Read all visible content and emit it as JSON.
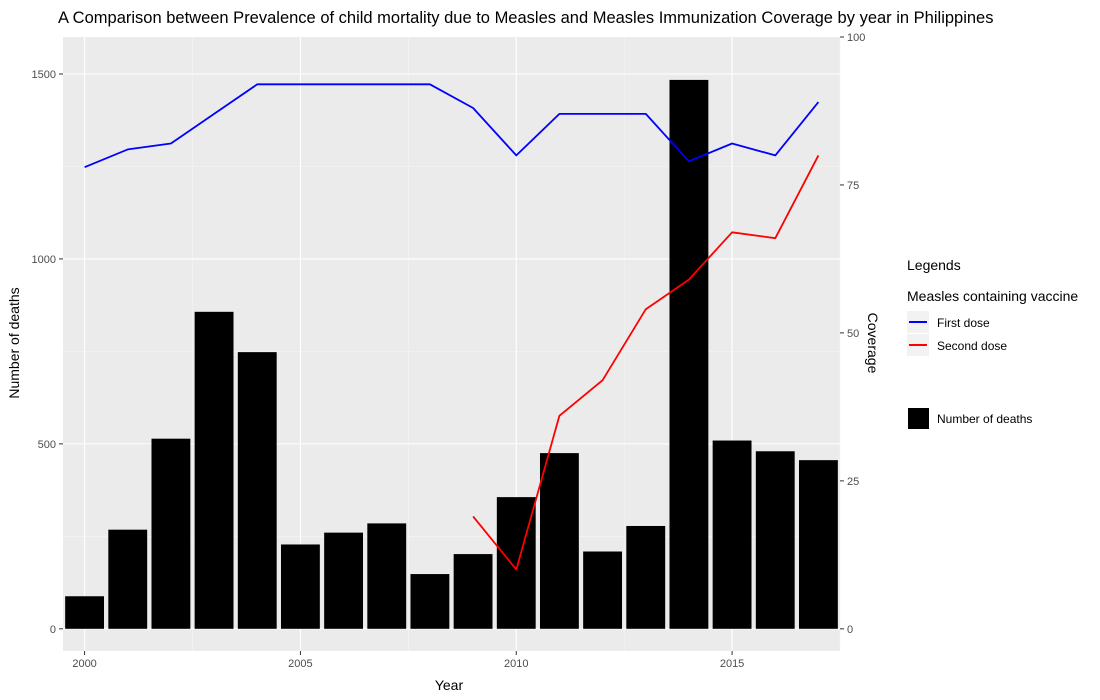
{
  "chart_data": {
    "type": "bar+line",
    "title": "A Comparison between Prevalence of child mortality due to Measles and Measles Immunization Coverage by year in Philippines",
    "xlabel": "Year",
    "ylabel": "Number of deaths",
    "y2label": "Coverage",
    "xlim": [
      1999.5,
      2017.5
    ],
    "ylim": [
      -60,
      1600
    ],
    "y2lim": [
      -3.75,
      100
    ],
    "x_ticks": [
      2000,
      2005,
      2010,
      2015
    ],
    "y_ticks": [
      0,
      500,
      1000,
      1500
    ],
    "y2_ticks": [
      0,
      25,
      50,
      75,
      100
    ],
    "bars": {
      "name": "Number of deaths",
      "color": "#000000",
      "x": [
        2000,
        2001,
        2002,
        2003,
        2004,
        2005,
        2006,
        2007,
        2008,
        2009,
        2010,
        2011,
        2012,
        2013,
        2014,
        2015,
        2016,
        2017
      ],
      "values": [
        88,
        268,
        514,
        857,
        748,
        228,
        260,
        285,
        148,
        202,
        356,
        475,
        209,
        278,
        1484,
        509,
        480,
        456
      ]
    },
    "series": [
      {
        "name": "First dose",
        "color": "#0000ff",
        "x": [
          2000,
          2001,
          2002,
          2003,
          2004,
          2005,
          2006,
          2007,
          2008,
          2009,
          2010,
          2011,
          2012,
          2013,
          2014,
          2015,
          2016,
          2017
        ],
        "values": [
          78,
          81,
          82,
          87,
          92,
          92,
          92,
          92,
          92,
          88,
          80,
          87,
          87,
          87,
          79,
          82,
          80,
          89
        ]
      },
      {
        "name": "Second dose",
        "color": "#ff0000",
        "x": [
          2009,
          2010,
          2011,
          2012,
          2013,
          2014,
          2015,
          2016,
          2017
        ],
        "values": [
          19,
          10,
          36,
          42,
          54,
          59,
          67,
          66,
          80
        ]
      }
    ],
    "legend": {
      "title": "Legends",
      "line_group_title": "Measles containing vaccine",
      "placement": "right"
    },
    "grid": true
  }
}
